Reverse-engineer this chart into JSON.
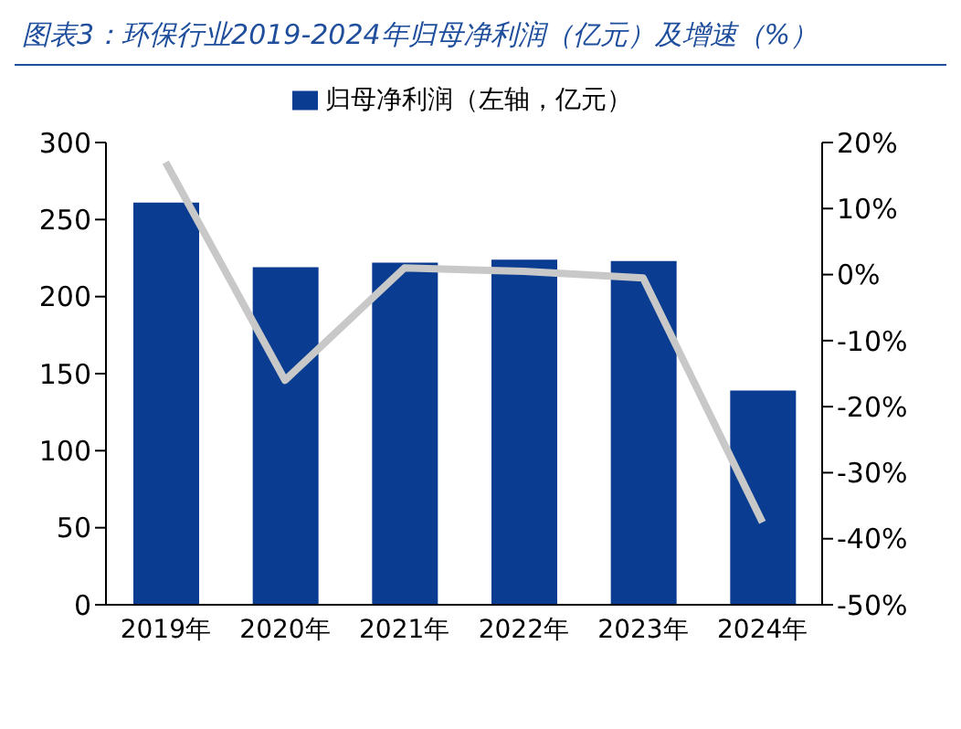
{
  "chart_data": {
    "type": "bar",
    "title": "图表3：环保行业2019-2024年归母净利润（亿元）及增速（%）",
    "categories": [
      "2019年",
      "2020年",
      "2021年",
      "2022年",
      "2023年",
      "2024年"
    ],
    "series": [
      {
        "name": "归母净利润（左轴，亿元）",
        "color": "#0a3d91",
        "values": [
          261,
          219,
          222,
          224,
          223,
          139
        ]
      },
      {
        "type": "line",
        "axis": "y2",
        "color": "#c8c8c8",
        "values": [
          17,
          -16,
          1,
          0.5,
          -0.5,
          -37.5
        ]
      }
    ],
    "ylim": [
      0,
      300
    ],
    "yticks": [
      0,
      50,
      100,
      150,
      200,
      250,
      300
    ],
    "y2lim": [
      -50,
      20
    ],
    "y2ticks": [
      {
        "value": -50,
        "label": "-50%"
      },
      {
        "value": -40,
        "label": "-40%"
      },
      {
        "value": -30,
        "label": "-30%"
      },
      {
        "value": -20,
        "label": "-20%"
      },
      {
        "value": -10,
        "label": "-10%"
      },
      {
        "value": 0,
        "label": "0%"
      },
      {
        "value": 10,
        "label": "10%"
      },
      {
        "value": 20,
        "label": "20%"
      }
    ],
    "legend": "top",
    "grid": false,
    "marker": "none"
  }
}
